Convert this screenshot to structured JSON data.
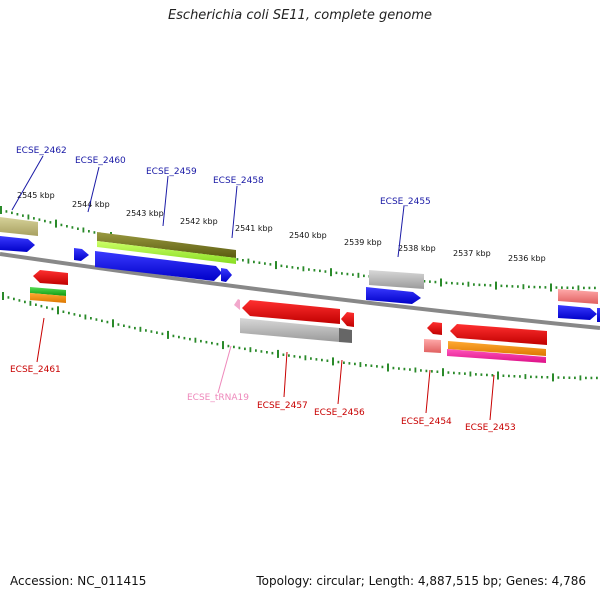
{
  "title": "Escherichia coli SE11, complete genome",
  "footer": {
    "accession": "Accession: NC_011415",
    "summary": "Topology: circular; Length: 4,887,515 bp; Genes: 4,786"
  },
  "scale_labels": [
    "2545 kbp",
    "2544 kbp",
    "2543 kbp",
    "2542 kbp",
    "2541 kbp",
    "2540 kbp",
    "2539 kbp",
    "2538 kbp",
    "2537 kbp",
    "2536 kbp"
  ],
  "gene_labels": {
    "top": [
      "ECSE_2462",
      "ECSE_2460",
      "ECSE_2459",
      "ECSE_2458",
      "ECSE_2455"
    ],
    "bottom": [
      "ECSE_2461",
      "ECSE_tRNA19",
      "ECSE_2457",
      "ECSE_2456",
      "ECSE_2454",
      "ECSE_2453"
    ]
  },
  "colors": {
    "label_top": "#1a1aa6",
    "label_bottom": "#c80000",
    "label_trna": "#ee88bb",
    "tick": "#2a8a2a",
    "backbone": "#888888"
  }
}
